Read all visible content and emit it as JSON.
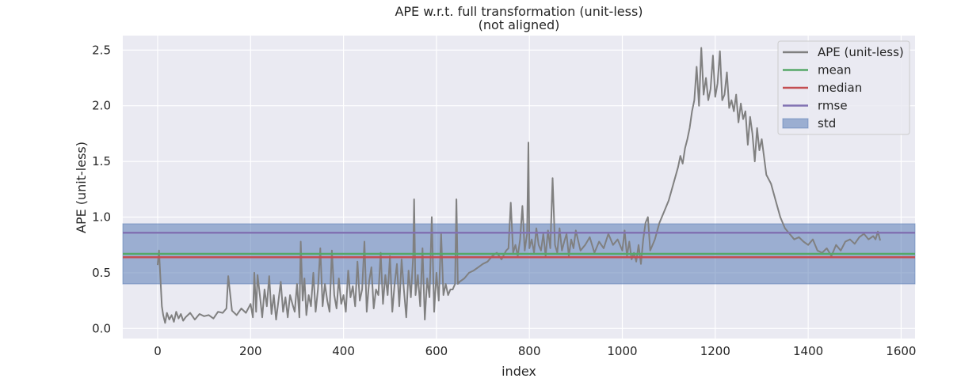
{
  "chart_data": {
    "type": "line",
    "title": "APE w.r.t. full transformation (unit-less)",
    "subtitle": "(not aligned)",
    "xlabel": "index",
    "ylabel": "APE (unit-less)",
    "xlim": [
      -75,
      1630
    ],
    "ylim": [
      -0.09,
      2.63
    ],
    "x_ticks": [
      0,
      200,
      400,
      600,
      800,
      1000,
      1200,
      1400,
      1600
    ],
    "x_tick_labels": [
      "0",
      "200",
      "400",
      "600",
      "800",
      "1000",
      "1200",
      "1400",
      "1600"
    ],
    "y_ticks": [
      0.0,
      0.5,
      1.0,
      1.5,
      2.0,
      2.5
    ],
    "y_tick_labels": [
      "0.0",
      "0.5",
      "1.0",
      "1.5",
      "2.0",
      "2.5"
    ],
    "grid": true,
    "legend_position": "top-right",
    "series": [
      {
        "name": "APE (unit-less)",
        "color": "#808080",
        "x": [
          0,
          3,
          6,
          9,
          12,
          16,
          20,
          25,
          30,
          35,
          40,
          45,
          50,
          55,
          60,
          70,
          80,
          90,
          100,
          110,
          120,
          130,
          140,
          148,
          152,
          160,
          170,
          180,
          190,
          200,
          205,
          208,
          212,
          215,
          220,
          225,
          230,
          235,
          240,
          245,
          250,
          255,
          260,
          265,
          270,
          275,
          280,
          285,
          290,
          295,
          300,
          305,
          308,
          312,
          316,
          320,
          325,
          330,
          335,
          340,
          345,
          350,
          355,
          360,
          365,
          370,
          375,
          380,
          385,
          390,
          395,
          400,
          405,
          410,
          415,
          420,
          425,
          430,
          435,
          440,
          445,
          450,
          455,
          460,
          465,
          470,
          475,
          480,
          485,
          490,
          495,
          500,
          505,
          510,
          515,
          520,
          525,
          530,
          535,
          540,
          545,
          550,
          552,
          555,
          560,
          565,
          570,
          575,
          580,
          585,
          590,
          595,
          600,
          605,
          610,
          615,
          620,
          625,
          630,
          635,
          640,
          643,
          646,
          650,
          660,
          670,
          680,
          690,
          700,
          710,
          720,
          730,
          740,
          750,
          755,
          760,
          765,
          770,
          775,
          780,
          785,
          790,
          795,
          798,
          800,
          805,
          810,
          815,
          820,
          825,
          830,
          835,
          840,
          845,
          850,
          855,
          860,
          865,
          870,
          875,
          880,
          885,
          890,
          895,
          900,
          910,
          920,
          930,
          940,
          950,
          960,
          970,
          980,
          990,
          1000,
          1005,
          1010,
          1015,
          1020,
          1025,
          1030,
          1035,
          1040,
          1045,
          1050,
          1055,
          1060,
          1070,
          1080,
          1090,
          1100,
          1110,
          1120,
          1125,
          1130,
          1135,
          1140,
          1145,
          1150,
          1155,
          1160,
          1165,
          1170,
          1175,
          1180,
          1185,
          1190,
          1195,
          1200,
          1205,
          1210,
          1215,
          1220,
          1225,
          1230,
          1235,
          1240,
          1245,
          1250,
          1255,
          1260,
          1265,
          1270,
          1275,
          1280,
          1285,
          1290,
          1295,
          1300,
          1310,
          1320,
          1330,
          1340,
          1350,
          1360,
          1370,
          1380,
          1390,
          1400,
          1410,
          1420,
          1430,
          1440,
          1450,
          1460,
          1470,
          1480,
          1490,
          1500,
          1510,
          1520,
          1530,
          1540,
          1545,
          1550,
          1555
        ],
        "y": [
          0.57,
          0.7,
          0.45,
          0.2,
          0.12,
          0.05,
          0.14,
          0.08,
          0.12,
          0.06,
          0.15,
          0.09,
          0.13,
          0.07,
          0.1,
          0.14,
          0.08,
          0.13,
          0.11,
          0.12,
          0.09,
          0.15,
          0.14,
          0.18,
          0.47,
          0.16,
          0.12,
          0.18,
          0.14,
          0.22,
          0.1,
          0.5,
          0.15,
          0.48,
          0.3,
          0.1,
          0.35,
          0.2,
          0.47,
          0.13,
          0.3,
          0.08,
          0.25,
          0.42,
          0.15,
          0.28,
          0.1,
          0.3,
          0.22,
          0.15,
          0.4,
          0.1,
          0.78,
          0.25,
          0.45,
          0.12,
          0.3,
          0.2,
          0.5,
          0.15,
          0.35,
          0.72,
          0.2,
          0.4,
          0.25,
          0.15,
          0.7,
          0.3,
          0.18,
          0.45,
          0.22,
          0.3,
          0.15,
          0.52,
          0.28,
          0.38,
          0.2,
          0.6,
          0.25,
          0.35,
          0.78,
          0.15,
          0.42,
          0.55,
          0.18,
          0.35,
          0.3,
          0.68,
          0.22,
          0.48,
          0.3,
          0.65,
          0.15,
          0.4,
          0.58,
          0.2,
          0.62,
          0.35,
          0.1,
          0.52,
          0.28,
          0.66,
          1.16,
          0.3,
          0.48,
          0.2,
          0.72,
          0.08,
          0.45,
          0.28,
          1.0,
          0.15,
          0.5,
          0.25,
          0.85,
          0.3,
          0.4,
          0.3,
          0.35,
          0.35,
          0.4,
          1.16,
          0.4,
          0.42,
          0.45,
          0.5,
          0.52,
          0.55,
          0.58,
          0.6,
          0.65,
          0.68,
          0.62,
          0.7,
          0.72,
          1.13,
          0.68,
          0.75,
          0.65,
          0.8,
          1.1,
          0.7,
          0.85,
          1.67,
          0.72,
          0.8,
          0.68,
          0.9,
          0.75,
          0.7,
          0.85,
          0.65,
          0.88,
          0.72,
          1.35,
          0.75,
          0.68,
          0.9,
          0.7,
          0.78,
          0.85,
          0.65,
          0.8,
          0.72,
          0.88,
          0.7,
          0.75,
          0.82,
          0.68,
          0.78,
          0.72,
          0.85,
          0.75,
          0.8,
          0.7,
          0.88,
          0.65,
          0.78,
          0.62,
          0.68,
          0.6,
          0.75,
          0.58,
          0.8,
          0.95,
          1.0,
          0.7,
          0.8,
          0.95,
          1.05,
          1.15,
          1.3,
          1.45,
          1.55,
          1.48,
          1.62,
          1.7,
          1.8,
          1.95,
          2.05,
          2.35,
          2.0,
          2.52,
          2.1,
          2.25,
          2.05,
          2.15,
          2.45,
          2.08,
          2.2,
          2.49,
          2.05,
          2.1,
          2.3,
          1.98,
          2.05,
          1.95,
          2.1,
          1.85,
          2.02,
          1.88,
          1.95,
          1.65,
          1.9,
          1.75,
          1.5,
          1.8,
          1.6,
          1.7,
          1.38,
          1.3,
          1.15,
          1.0,
          0.9,
          0.85,
          0.8,
          0.82,
          0.78,
          0.75,
          0.8,
          0.7,
          0.68,
          0.72,
          0.65,
          0.75,
          0.7,
          0.78,
          0.8,
          0.76,
          0.82,
          0.85,
          0.8,
          0.83,
          0.8,
          0.87,
          0.79
        ]
      },
      {
        "name": "mean",
        "color": "#55a868",
        "value": 0.67
      },
      {
        "name": "median",
        "color": "#c44e52",
        "value": 0.64
      },
      {
        "name": "rmse",
        "color": "#8172b2",
        "value": 0.86
      },
      {
        "name": "std",
        "color": "#4c72b0",
        "range": [
          0.4,
          0.94
        ]
      }
    ],
    "colors": {
      "plot_background": "#eaeaf2",
      "grid": "#ffffff",
      "std_fill": "#4c72b0"
    }
  }
}
